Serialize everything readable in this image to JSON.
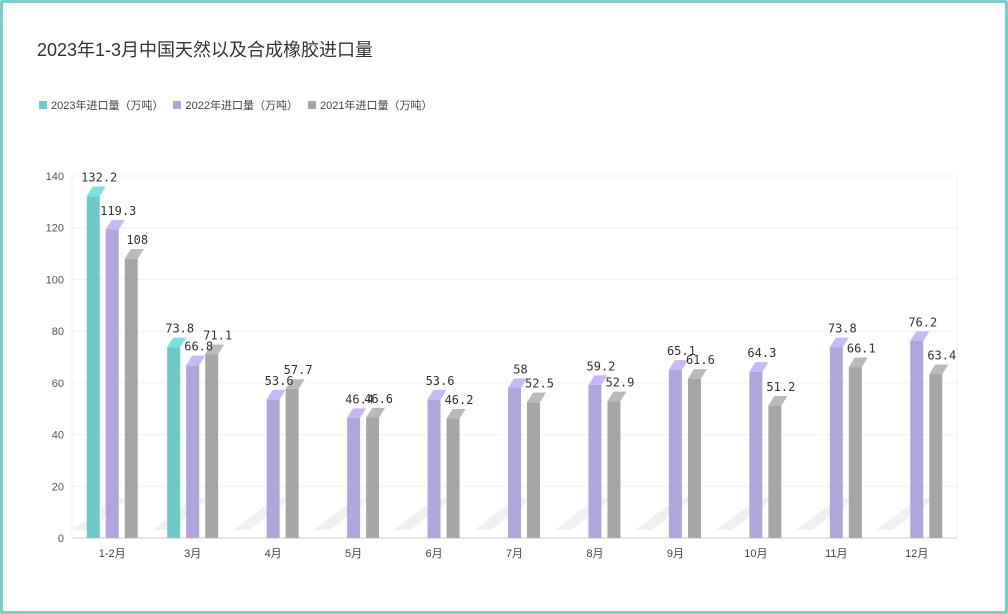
{
  "chart_data": {
    "type": "bar",
    "title": "2023年1-3月中国天然以及合成橡胶进口量",
    "categories": [
      "1-2月",
      "3月",
      "4月",
      "5月",
      "6月",
      "7月",
      "8月",
      "9月",
      "10月",
      "11月",
      "12月"
    ],
    "series": [
      {
        "name": "2023年进口量（万吨）",
        "color": "#6dcac6",
        "values": [
          132.2,
          73.8,
          null,
          null,
          null,
          null,
          null,
          null,
          null,
          null,
          null
        ]
      },
      {
        "name": "2022年进口量（万吨）",
        "color": "#b2a5dc",
        "values": [
          119.3,
          66.8,
          53.6,
          46.4,
          53.6,
          58,
          59.2,
          65.1,
          64.3,
          73.8,
          76.2
        ]
      },
      {
        "name": "2021年进口量（万吨）",
        "color": "#a6a6a6",
        "values": [
          108,
          71.1,
          57.7,
          46.6,
          46.2,
          52.5,
          52.9,
          61.6,
          51.2,
          66.1,
          63.4
        ]
      }
    ],
    "ylim": [
      0,
      140
    ],
    "yticks": [
      0,
      20,
      40,
      60,
      80,
      100,
      120,
      140
    ],
    "legend_position": "top-left",
    "grid": true
  }
}
